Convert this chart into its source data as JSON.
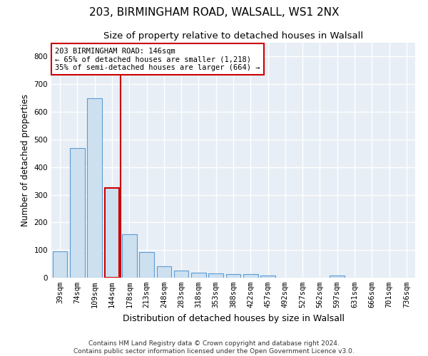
{
  "title_line1": "203, BIRMINGHAM ROAD, WALSALL, WS1 2NX",
  "title_line2": "Size of property relative to detached houses in Walsall",
  "xlabel": "Distribution of detached houses by size in Walsall",
  "ylabel": "Number of detached properties",
  "footer": "Contains HM Land Registry data © Crown copyright and database right 2024.\nContains public sector information licensed under the Open Government Licence v3.0.",
  "categories": [
    "39sqm",
    "74sqm",
    "109sqm",
    "144sqm",
    "178sqm",
    "213sqm",
    "248sqm",
    "283sqm",
    "318sqm",
    "353sqm",
    "388sqm",
    "422sqm",
    "457sqm",
    "492sqm",
    "527sqm",
    "562sqm",
    "597sqm",
    "631sqm",
    "666sqm",
    "701sqm",
    "736sqm"
  ],
  "values": [
    95,
    470,
    648,
    325,
    158,
    92,
    40,
    25,
    18,
    15,
    14,
    14,
    9,
    0,
    0,
    0,
    8,
    0,
    0,
    0,
    0
  ],
  "bar_color": "#cce0f0",
  "bar_edge_color": "#5b9bd5",
  "highlight_bar_index": 3,
  "highlight_bar_edge_color": "#cc0000",
  "vline_color": "#cc0000",
  "annotation_text": "203 BIRMINGHAM ROAD: 146sqm\n← 65% of detached houses are smaller (1,218)\n35% of semi-detached houses are larger (664) →",
  "annotation_box_color": "#ffffff",
  "annotation_box_edge": "#cc0000",
  "ylim": [
    0,
    850
  ],
  "yticks": [
    0,
    100,
    200,
    300,
    400,
    500,
    600,
    700,
    800
  ],
  "bg_color": "#ffffff",
  "plot_bg_color": "#e8eef5",
  "grid_color": "#ffffff",
  "title1_fontsize": 11,
  "title2_fontsize": 9.5,
  "xlabel_fontsize": 9,
  "ylabel_fontsize": 8.5,
  "tick_fontsize": 7.5,
  "footer_fontsize": 6.5
}
